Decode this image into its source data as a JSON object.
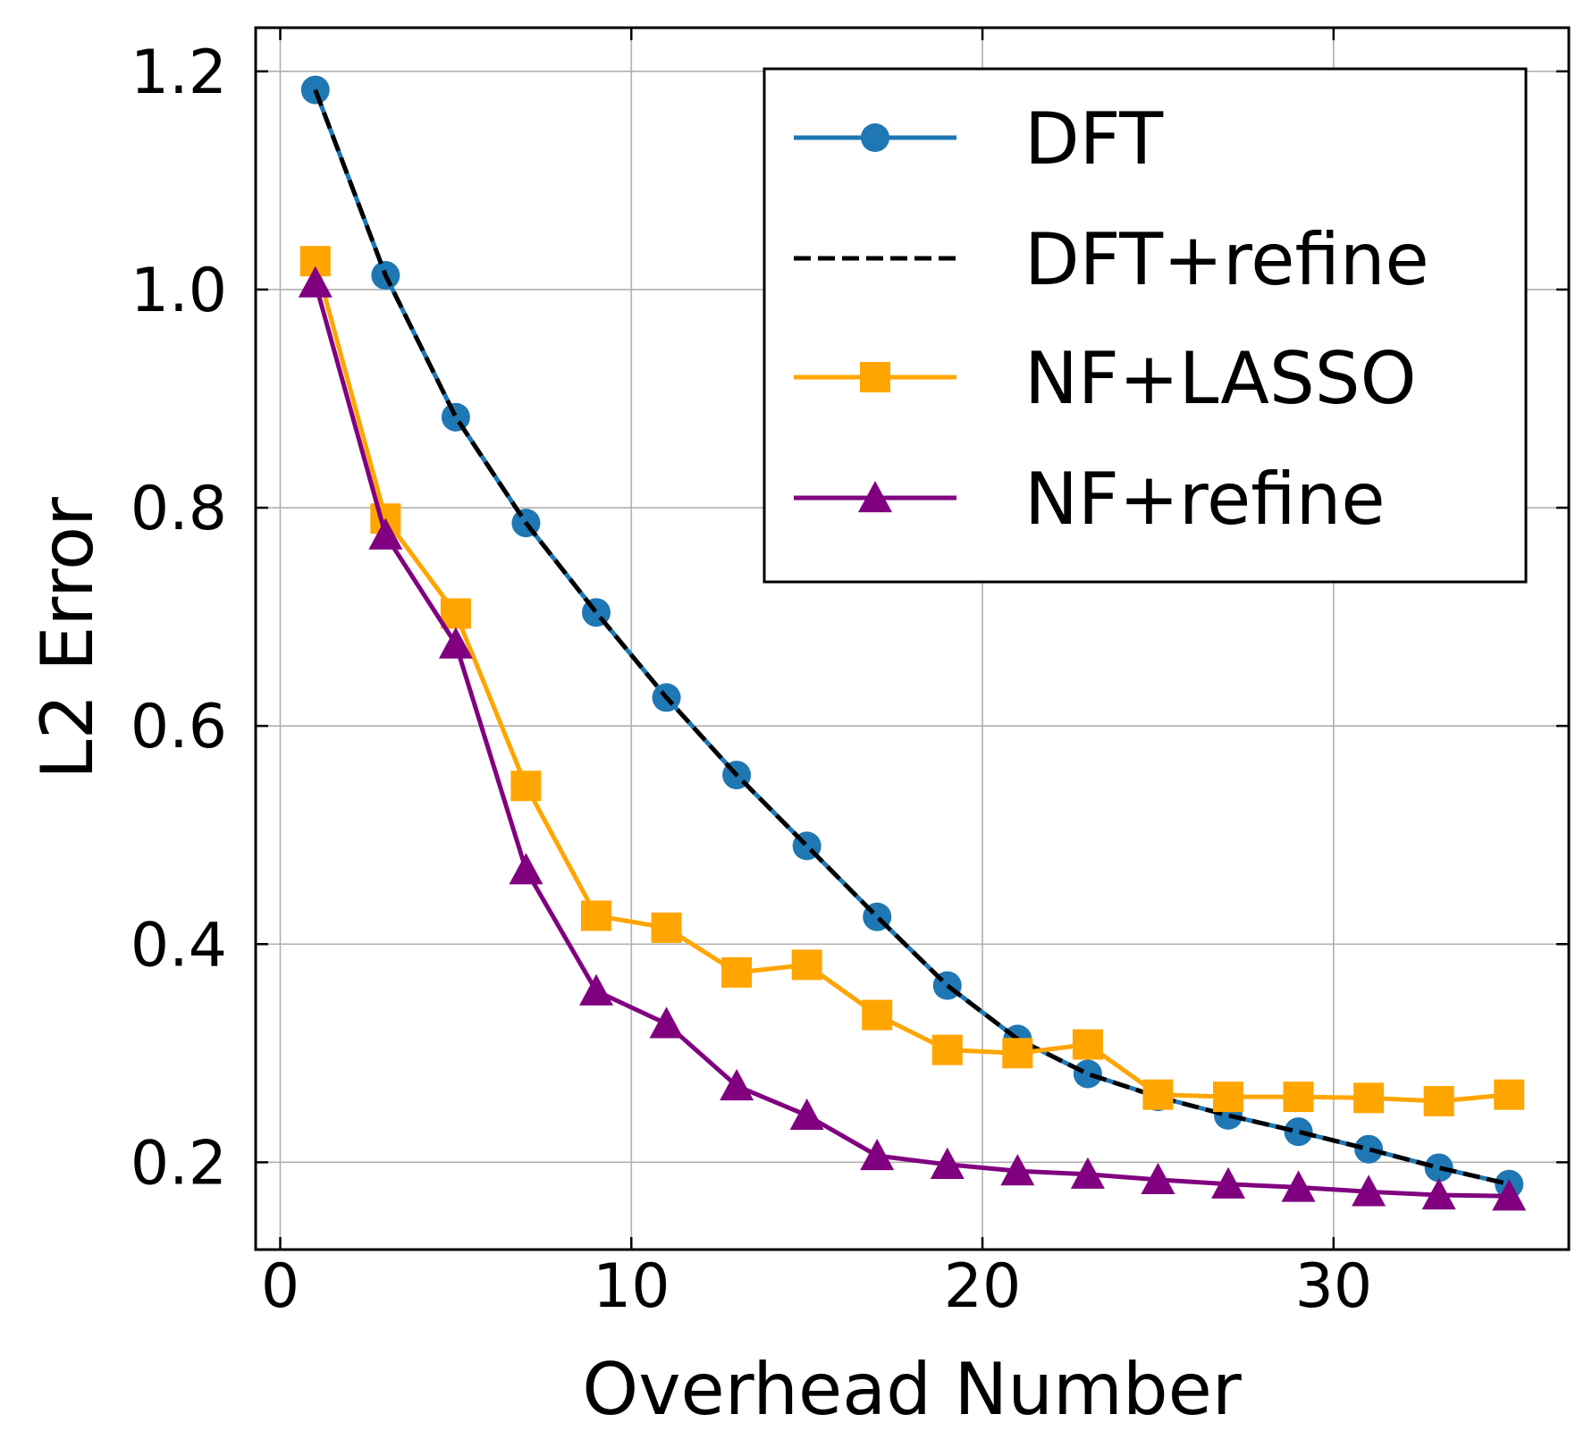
{
  "chart_data": {
    "type": "line",
    "title": "",
    "xlabel": "Overhead Number",
    "ylabel": "L2 Error",
    "xlim": [
      -0.7,
      36.7
    ],
    "ylim": [
      0.12,
      1.24
    ],
    "xticks": [
      0,
      10,
      20,
      30
    ],
    "yticks": [
      0.2,
      0.4,
      0.6,
      0.8,
      1.0,
      1.2
    ],
    "xtick_labels": [
      "0",
      "10",
      "20",
      "30"
    ],
    "ytick_labels": [
      "0.2",
      "0.4",
      "0.6",
      "0.8",
      "1.0",
      "1.2"
    ],
    "grid": true,
    "legend_position": "top-right",
    "x": [
      1,
      3,
      5,
      7,
      9,
      11,
      13,
      15,
      17,
      19,
      21,
      23,
      25,
      27,
      29,
      31,
      33,
      35
    ],
    "series": [
      {
        "name": "DFT",
        "color": "#1f77b4",
        "marker": "circle",
        "linestyle": "solid",
        "values": [
          1.183,
          1.013,
          0.883,
          0.786,
          0.704,
          0.626,
          0.555,
          0.49,
          0.425,
          0.362,
          0.313,
          0.281,
          0.26,
          0.243,
          0.228,
          0.212,
          0.195,
          0.18
        ]
      },
      {
        "name": "DFT+refine",
        "color": "#000000",
        "marker": "none",
        "linestyle": "dashed",
        "values": [
          1.183,
          1.013,
          0.883,
          0.786,
          0.704,
          0.626,
          0.555,
          0.49,
          0.425,
          0.362,
          0.313,
          0.281,
          0.26,
          0.243,
          0.228,
          0.212,
          0.195,
          0.18
        ]
      },
      {
        "name": "NF+LASSO",
        "color": "#ffa500",
        "marker": "square",
        "linestyle": "solid",
        "values": [
          1.026,
          0.79,
          0.703,
          0.545,
          0.426,
          0.415,
          0.374,
          0.381,
          0.335,
          0.303,
          0.3,
          0.308,
          0.262,
          0.26,
          0.26,
          0.259,
          0.256,
          0.262
        ]
      },
      {
        "name": "NF+refine",
        "color": "#800080",
        "marker": "triangle",
        "linestyle": "solid",
        "values": [
          1.006,
          0.775,
          0.675,
          0.468,
          0.357,
          0.327,
          0.27,
          0.243,
          0.206,
          0.198,
          0.192,
          0.189,
          0.184,
          0.18,
          0.177,
          0.173,
          0.17,
          0.169
        ]
      }
    ]
  }
}
